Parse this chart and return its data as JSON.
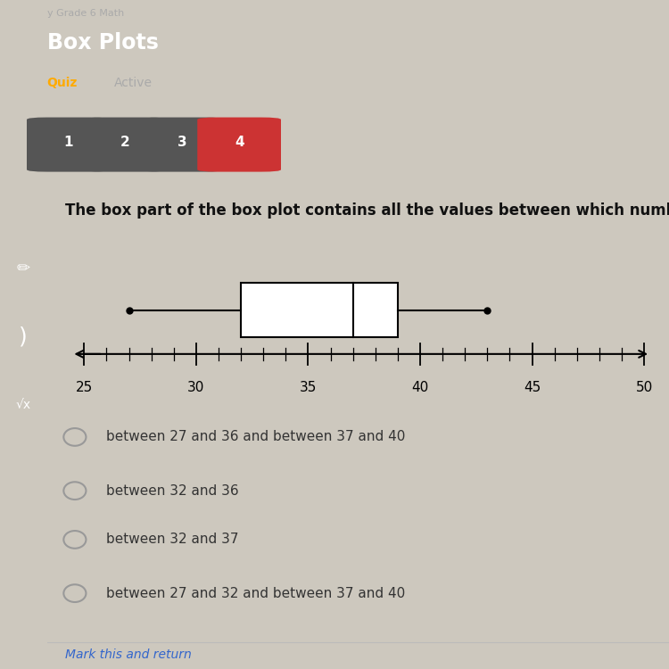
{
  "title": "Box Plots",
  "question": "The box part of the box plot contains all the values between which numbers?",
  "header_bg": "#1a1a1a",
  "content_bg": "#cdc8be",
  "quiz_buttons": [
    {
      "label": "1",
      "color": "#666666"
    },
    {
      "label": "2",
      "color": "#666666"
    },
    {
      "label": "3",
      "color": "#666666"
    },
    {
      "label": "4",
      "color": "#cc3333"
    }
  ],
  "boxplot": {
    "min": 27,
    "q1": 32,
    "median": 37,
    "q3": 39,
    "max": 43,
    "axis_min": 25,
    "axis_max": 50,
    "axis_ticks": [
      25,
      30,
      35,
      40,
      45,
      50
    ]
  },
  "choices": [
    "between 27 and 36 and between 37 and 40",
    "between 32 and 36",
    "between 32 and 37",
    "between 27 and 32 and between 37 and 40"
  ],
  "footer_text": "Mark this and return",
  "footer_color": "#3366cc"
}
